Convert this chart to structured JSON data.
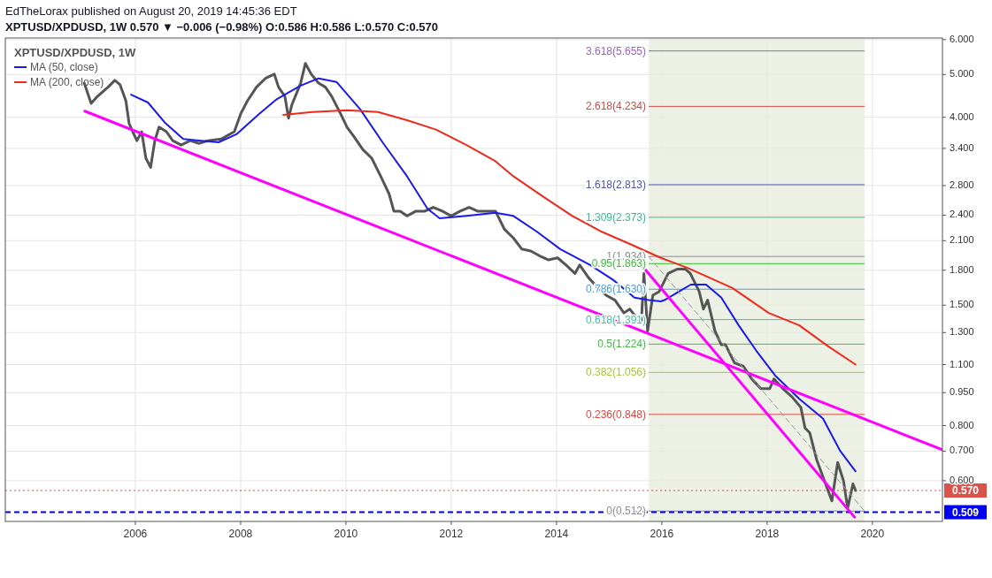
{
  "chart_data": {
    "type": "line",
    "title": "XPTUSD/XPDUSD, 1W",
    "annotations": [
      "EdTheLorax published on August 20, 2019 14:45:36 EDT",
      "XPTUSD/XPDUSD, 1W  0.570 ▼ −0.006 (−0.98%) O:0.586 H:0.586 L:0.570 C:0.570"
    ],
    "xlim": [
      2003.53,
      2021.33
    ],
    "xticks": [
      2006,
      2008,
      2010,
      2012,
      2014,
      2016,
      2018,
      2020
    ],
    "log": "y",
    "ylim": [
      0.485,
      6.05
    ],
    "yticks": [
      {
        "value": 0.6,
        "label": "0.600"
      },
      {
        "value": 0.7,
        "label": "0.700"
      },
      {
        "value": 0.8,
        "label": "0.800"
      },
      {
        "value": 0.95,
        "label": "0.950"
      },
      {
        "value": 1.1,
        "label": "1.100"
      },
      {
        "value": 1.3,
        "label": "1.300"
      },
      {
        "value": 1.5,
        "label": "1.500"
      },
      {
        "value": 1.8,
        "label": "1.800"
      },
      {
        "value": 2.1,
        "label": "2.100"
      },
      {
        "value": 2.4,
        "label": "2.400"
      },
      {
        "value": 2.8,
        "label": "2.800"
      },
      {
        "value": 3.4,
        "label": "3.400"
      },
      {
        "value": 4,
        "label": "4.000"
      },
      {
        "value": 5,
        "label": "5.000"
      },
      {
        "value": 6,
        "label": "6.000"
      }
    ],
    "grid": true,
    "legend": "top left",
    "bands": [
      {
        "axis": "x",
        "from": 2015.75,
        "to": 2019.85,
        "color": "#e9eedf"
      }
    ],
    "ref_lines": [
      {
        "axis": "y",
        "value": 5.655,
        "label": "3.618(5.655)",
        "color": "#9c5fc8",
        "line_style": "solid"
      },
      {
        "axis": "y",
        "value": 4.234,
        "label": "2.618(4.234)",
        "color": "#d34a42",
        "line_style": "solid"
      },
      {
        "axis": "y",
        "value": 2.813,
        "label": "1.618(2.813)",
        "color": "#4b52b0",
        "line_style": "solid"
      },
      {
        "axis": "y",
        "value": 2.373,
        "label": "1.309(2.373)",
        "color": "#2cc18e",
        "line_style": "solid"
      },
      {
        "axis": "y",
        "value": 1.934,
        "label": "1(1.934)",
        "color": "#8c8c8c",
        "line_style": "solid"
      },
      {
        "axis": "y",
        "value": 1.863,
        "label": "0.95(1.863)",
        "color": "#35c235",
        "line_style": "solid"
      },
      {
        "axis": "y",
        "value": 1.63,
        "label": "0.786(1.630)",
        "color": "#4a9fd6",
        "line_style": "solid"
      },
      {
        "axis": "y",
        "value": 1.391,
        "label": "0.618(1.391)",
        "color": "#3fc2a3",
        "line_style": "solid"
      },
      {
        "axis": "y",
        "value": 1.224,
        "label": "0.5(1.224)",
        "color": "#45b845",
        "line_style": "solid"
      },
      {
        "axis": "y",
        "value": 1.056,
        "label": "0.382(1.056)",
        "color": "#a4c83c",
        "line_style": "solid"
      },
      {
        "axis": "y",
        "value": 0.848,
        "label": "0.236(0.848)",
        "color": "#e0463e",
        "line_style": "solid"
      },
      {
        "axis": "y",
        "value": 0.512,
        "label": "0(0.512)",
        "color": "#8c8c8c",
        "line_style": "solid"
      },
      {
        "axis": "y",
        "value": 0.57,
        "label": "0.570",
        "color": "#d9534a",
        "line_style": "dotted"
      },
      {
        "axis": "y",
        "value": 0.509,
        "label": "0.509",
        "color": "#0000ee",
        "line_style": "dashed"
      }
    ],
    "series": [
      {
        "color": "#555555",
        "line_style": "solid",
        "x": [
          2005.03,
          2005.16,
          2005.28,
          2005.48,
          2005.61,
          2005.71,
          2005.82,
          2005.88,
          2005.95,
          2006.03,
          2006.12,
          2006.2,
          2006.29,
          2006.37,
          2006.45,
          2006.59,
          2006.71,
          2006.87,
          2007.04,
          2007.21,
          2007.38,
          2007.63,
          2007.88,
          2008.0,
          2008.13,
          2008.3,
          2008.47,
          2008.64,
          2008.72,
          2008.84,
          2008.91,
          2008.97,
          2009.14,
          2009.23,
          2009.34,
          2009.48,
          2009.61,
          2009.73,
          2009.9,
          2010.02,
          2010.15,
          2010.32,
          2010.49,
          2010.66,
          2010.82,
          2010.91,
          2011.03,
          2011.16,
          2011.33,
          2011.5,
          2011.66,
          2011.83,
          2012.0,
          2012.17,
          2012.34,
          2012.5,
          2012.71,
          2012.84,
          2013.01,
          2013.18,
          2013.34,
          2013.51,
          2013.68,
          2013.85,
          2014.02,
          2014.18,
          2014.35,
          2014.44,
          2014.61,
          2014.77,
          2014.94,
          2015.11,
          2015.28,
          2015.39,
          2015.53,
          2015.61,
          2015.66,
          2015.73,
          2015.83,
          2015.95,
          2016.12,
          2016.29,
          2016.45,
          2016.54,
          2016.71,
          2016.79,
          2016.87,
          2017.01,
          2017.13,
          2017.21,
          2017.38,
          2017.55,
          2017.71,
          2017.88,
          2018.05,
          2018.13,
          2018.3,
          2018.47,
          2018.64,
          2018.72,
          2018.81,
          2018.94,
          2019.11,
          2019.23,
          2019.34,
          2019.45,
          2019.53,
          2019.63,
          2019.68
        ],
        "values": [
          4.78,
          4.3,
          4.46,
          4.68,
          4.85,
          4.74,
          4.36,
          3.88,
          3.71,
          3.54,
          3.71,
          3.23,
          3.08,
          3.54,
          3.8,
          3.71,
          3.54,
          3.46,
          3.54,
          3.49,
          3.54,
          3.57,
          3.71,
          4.07,
          4.36,
          4.68,
          4.9,
          5.01,
          4.68,
          4.46,
          3.98,
          4.26,
          4.78,
          5.3,
          5.01,
          4.78,
          4.68,
          4.46,
          4.07,
          3.8,
          3.62,
          3.38,
          3.23,
          2.94,
          2.68,
          2.45,
          2.45,
          2.39,
          2.45,
          2.45,
          2.5,
          2.45,
          2.39,
          2.45,
          2.5,
          2.45,
          2.45,
          2.45,
          2.23,
          2.13,
          2.01,
          1.99,
          1.94,
          1.9,
          1.92,
          1.85,
          1.77,
          1.85,
          1.73,
          1.65,
          1.58,
          1.54,
          1.44,
          1.47,
          1.4,
          1.37,
          1.77,
          1.31,
          1.58,
          1.61,
          1.77,
          1.81,
          1.81,
          1.77,
          1.61,
          1.47,
          1.54,
          1.31,
          1.22,
          1.22,
          1.11,
          1.09,
          1.02,
          0.97,
          0.97,
          1.02,
          0.97,
          0.93,
          0.88,
          0.79,
          0.77,
          0.67,
          0.59,
          0.54,
          0.66,
          0.6,
          0.52,
          0.59,
          0.57
        ]
      },
      {
        "name": "MA (50, close)",
        "color": "#1a1aee",
        "line_style": "solid",
        "x": [
          2005.92,
          2006.24,
          2006.57,
          2006.91,
          2007.24,
          2007.58,
          2007.92,
          2008.35,
          2008.69,
          2009.14,
          2009.48,
          2009.82,
          2010.27,
          2010.71,
          2011.16,
          2011.55,
          2011.78,
          2012.29,
          2012.84,
          2013.18,
          2013.63,
          2014.07,
          2014.64,
          2015.08,
          2015.48,
          2015.75,
          2015.98,
          2016.05,
          2016.55,
          2016.84,
          2017.13,
          2017.46,
          2017.8,
          2018.15,
          2018.61,
          2019.06,
          2019.39,
          2019.68
        ],
        "values": [
          4.5,
          4.32,
          3.88,
          3.57,
          3.54,
          3.51,
          3.66,
          4.07,
          4.4,
          4.72,
          4.9,
          4.81,
          4.17,
          3.49,
          2.94,
          2.48,
          2.36,
          2.39,
          2.43,
          2.39,
          2.2,
          2.01,
          1.85,
          1.71,
          1.56,
          1.54,
          1.53,
          1.54,
          1.67,
          1.67,
          1.56,
          1.35,
          1.18,
          1.04,
          0.92,
          0.83,
          0.7,
          0.63
        ]
      },
      {
        "name": "MA (200, close)",
        "color": "#ee2a1a",
        "line_style": "solid",
        "x": [
          2008.81,
          2009.36,
          2010.03,
          2010.61,
          2011.16,
          2011.71,
          2012.29,
          2012.84,
          2013.18,
          2013.73,
          2014.3,
          2014.86,
          2015.41,
          2015.98,
          2016.5,
          2017.34,
          2018.03,
          2018.61,
          2019.16,
          2019.68
        ],
        "values": [
          4.05,
          4.11,
          4.15,
          4.11,
          3.94,
          3.75,
          3.46,
          3.18,
          2.94,
          2.65,
          2.39,
          2.2,
          2.06,
          1.92,
          1.82,
          1.64,
          1.44,
          1.35,
          1.21,
          1.1
        ]
      },
      {
        "color": "#ff00ff",
        "line_style": "solid",
        "x": [
          2005.04,
          2021.33
        ],
        "values": [
          4.13,
          0.705
        ]
      },
      {
        "color": "#ff00ff",
        "line_style": "solid",
        "x": [
          2015.61,
          2019.66
        ],
        "values": [
          1.85,
          0.496
        ]
      },
      {
        "color": "#999999",
        "line_style": "dashed",
        "x": [
          2015.75,
          2019.85
        ],
        "values": [
          1.934,
          0.512
        ]
      }
    ]
  }
}
